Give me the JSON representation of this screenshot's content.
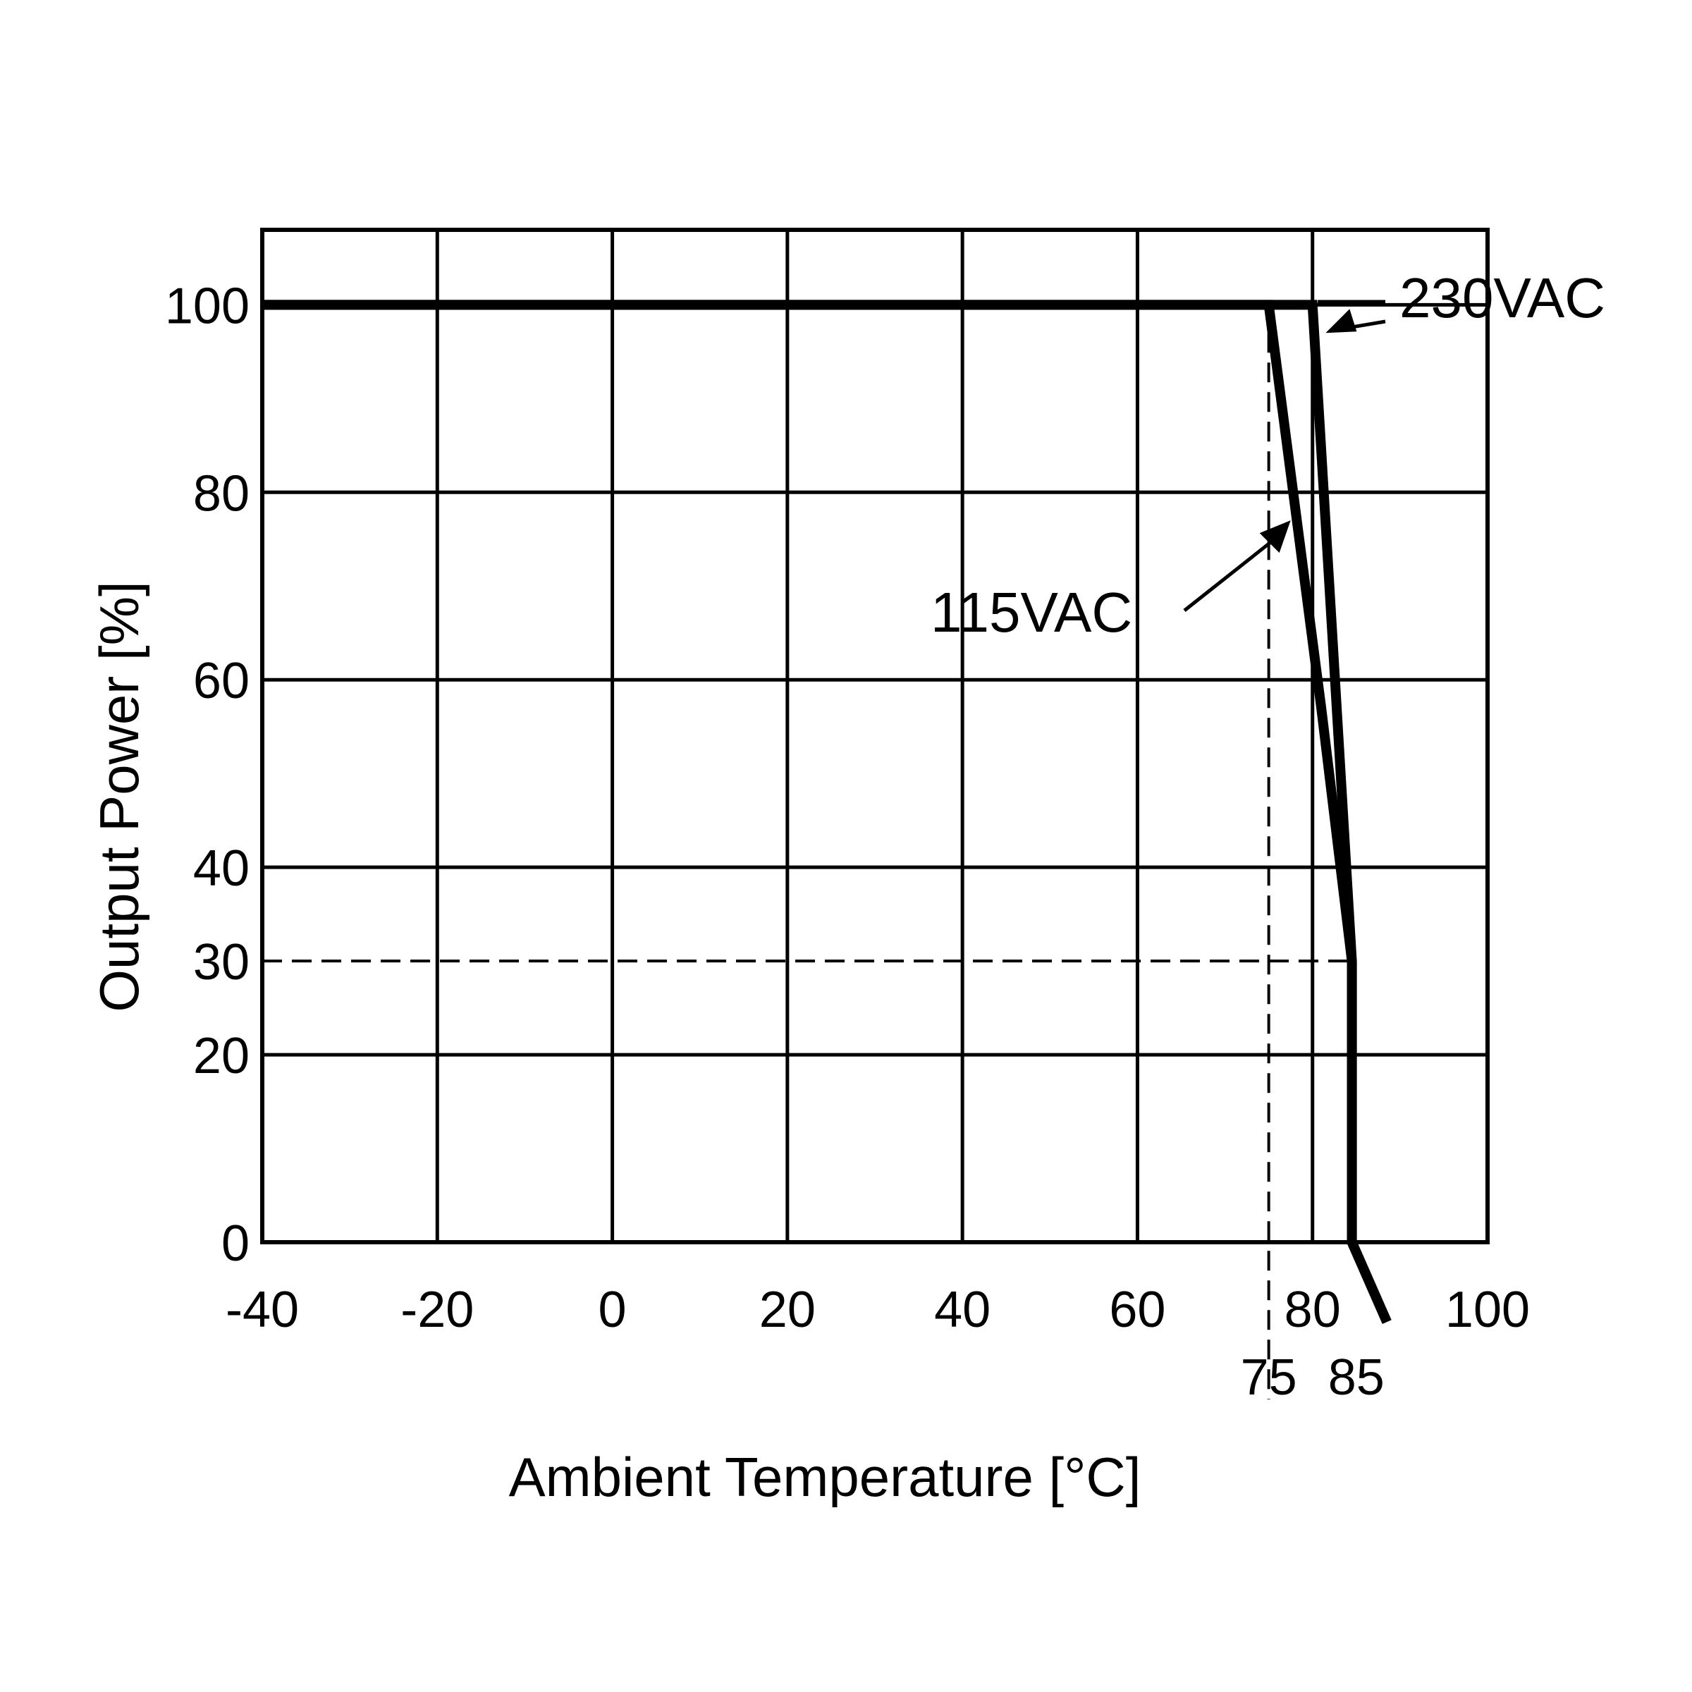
{
  "chart_data": {
    "type": "line",
    "title": "",
    "xlabel": "Ambient Temperature [°C]",
    "ylabel": "Output Power [%]",
    "xlim": [
      -40,
      100
    ],
    "ylim": [
      0,
      108
    ],
    "grid": true,
    "x_ticks": [
      {
        "value": -40,
        "label": "-40"
      },
      {
        "value": -20,
        "label": "-20"
      },
      {
        "value": 0,
        "label": "0"
      },
      {
        "value": 20,
        "label": "20"
      },
      {
        "value": 40,
        "label": "40"
      },
      {
        "value": 60,
        "label": "60"
      },
      {
        "value": 80,
        "label": "80"
      },
      {
        "value": 100,
        "label": "100"
      }
    ],
    "x_extra_ticks": [
      {
        "value": 75,
        "label": "75"
      },
      {
        "value": 85,
        "label": "85"
      }
    ],
    "y_ticks": [
      {
        "value": 0,
        "label": "0"
      },
      {
        "value": 20,
        "label": "20"
      },
      {
        "value": 30,
        "label": "30"
      },
      {
        "value": 40,
        "label": "40"
      },
      {
        "value": 60,
        "label": "60"
      },
      {
        "value": 80,
        "label": "80"
      },
      {
        "value": 100,
        "label": "100"
      }
    ],
    "reference_lines": [
      {
        "orientation": "vertical",
        "value": 75
      },
      {
        "orientation": "horizontal",
        "value": 30
      }
    ],
    "series": [
      {
        "name": "115VAC",
        "x": [
          -40,
          75,
          81,
          84.5,
          84.5,
          88.5
        ],
        "y": [
          100,
          100,
          57,
          30,
          0,
          -8.5
        ]
      },
      {
        "name": "230VAC",
        "x": [
          -40,
          80,
          84.5,
          84.5,
          88.5
        ],
        "y": [
          100,
          100,
          30,
          0,
          -8.5
        ]
      }
    ],
    "annotations": [
      {
        "text": "230VAC",
        "target": [
          81.5,
          97
        ]
      },
      {
        "text": "115VAC",
        "target": [
          77.5,
          77
        ]
      }
    ]
  }
}
